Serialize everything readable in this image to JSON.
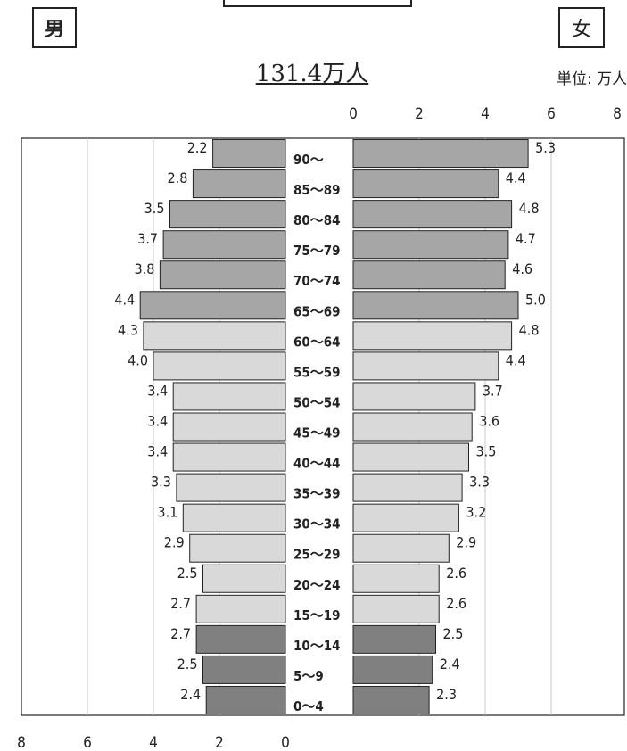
{
  "labels": {
    "male": "男",
    "female": "女",
    "total": "131.4万人",
    "unit": "単位: 万人"
  },
  "colors": {
    "elderly": "#a6a6a6",
    "working": "#d9d9d9",
    "young": "#808080",
    "gridline": "#c8c8c8",
    "border": "#222222"
  },
  "chart_data": {
    "type": "bar",
    "orientation": "horizontal",
    "subtype": "population-pyramid",
    "categories": [
      "90～",
      "85～89",
      "80～84",
      "75～79",
      "70～74",
      "65～69",
      "60～64",
      "55～59",
      "50～54",
      "45～49",
      "40～44",
      "35～39",
      "30～34",
      "25～29",
      "20～24",
      "15～19",
      "10～14",
      "5～9",
      "0～4"
    ],
    "groups": [
      "elderly",
      "elderly",
      "elderly",
      "elderly",
      "elderly",
      "elderly",
      "working",
      "working",
      "working",
      "working",
      "working",
      "working",
      "working",
      "working",
      "working",
      "working",
      "young",
      "young",
      "young"
    ],
    "series": [
      {
        "name": "男",
        "values": [
          2.2,
          2.8,
          3.5,
          3.7,
          3.8,
          4.4,
          4.3,
          4.0,
          3.4,
          3.4,
          3.4,
          3.3,
          3.1,
          2.9,
          2.5,
          2.7,
          2.7,
          2.5,
          2.4
        ]
      },
      {
        "name": "女",
        "values": [
          5.3,
          4.4,
          4.8,
          4.7,
          4.6,
          5.0,
          4.8,
          4.4,
          3.7,
          3.6,
          3.5,
          3.3,
          3.2,
          2.9,
          2.6,
          2.6,
          2.5,
          2.4,
          2.3
        ]
      }
    ],
    "value_labels_male": [
      "2.2",
      "2.8",
      "3.5",
      "3.7",
      "3.8",
      "4.4",
      "4.3",
      "4.0",
      "3.4",
      "3.4",
      "3.4",
      "3.3",
      "3.1",
      "2.9",
      "2.5",
      "2.7",
      "2.7",
      "2.5",
      "2.4"
    ],
    "value_labels_female": [
      "5.3",
      "4.4",
      "4.8",
      "4.7",
      "4.6",
      "5.0",
      "4.8",
      "4.4",
      "3.7",
      "3.6",
      "3.5",
      "3.3",
      "3.2",
      "2.9",
      "2.6",
      "2.6",
      "2.5",
      "2.4",
      "2.3"
    ],
    "male_ticks": [
      "8",
      "6",
      "4",
      "2",
      "0"
    ],
    "female_ticks": [
      "0",
      "2",
      "4",
      "6",
      "8"
    ],
    "xlim": [
      0,
      8
    ],
    "grid": true
  }
}
